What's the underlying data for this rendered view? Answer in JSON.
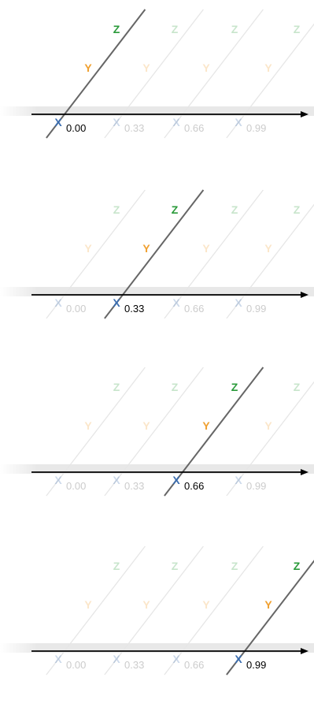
{
  "panels": [
    {
      "active_index": 0
    },
    {
      "active_index": 1
    },
    {
      "active_index": 2
    },
    {
      "active_index": 3
    }
  ],
  "tick_labels": [
    "0.00",
    "0.33",
    "0.66",
    "0.99"
  ],
  "axis_labels": {
    "x": "X",
    "y": "Y",
    "z": "Z"
  },
  "colors": {
    "x": "#3a6db0",
    "y": "#f0a030",
    "z": "#2a9a3a",
    "active_line": "#666666",
    "faint_line": "#e6e6e6",
    "axis": "#000000",
    "band": "#e8e8e8",
    "faint_tick": "#cccccc"
  },
  "faint_opacity": 0.25
}
